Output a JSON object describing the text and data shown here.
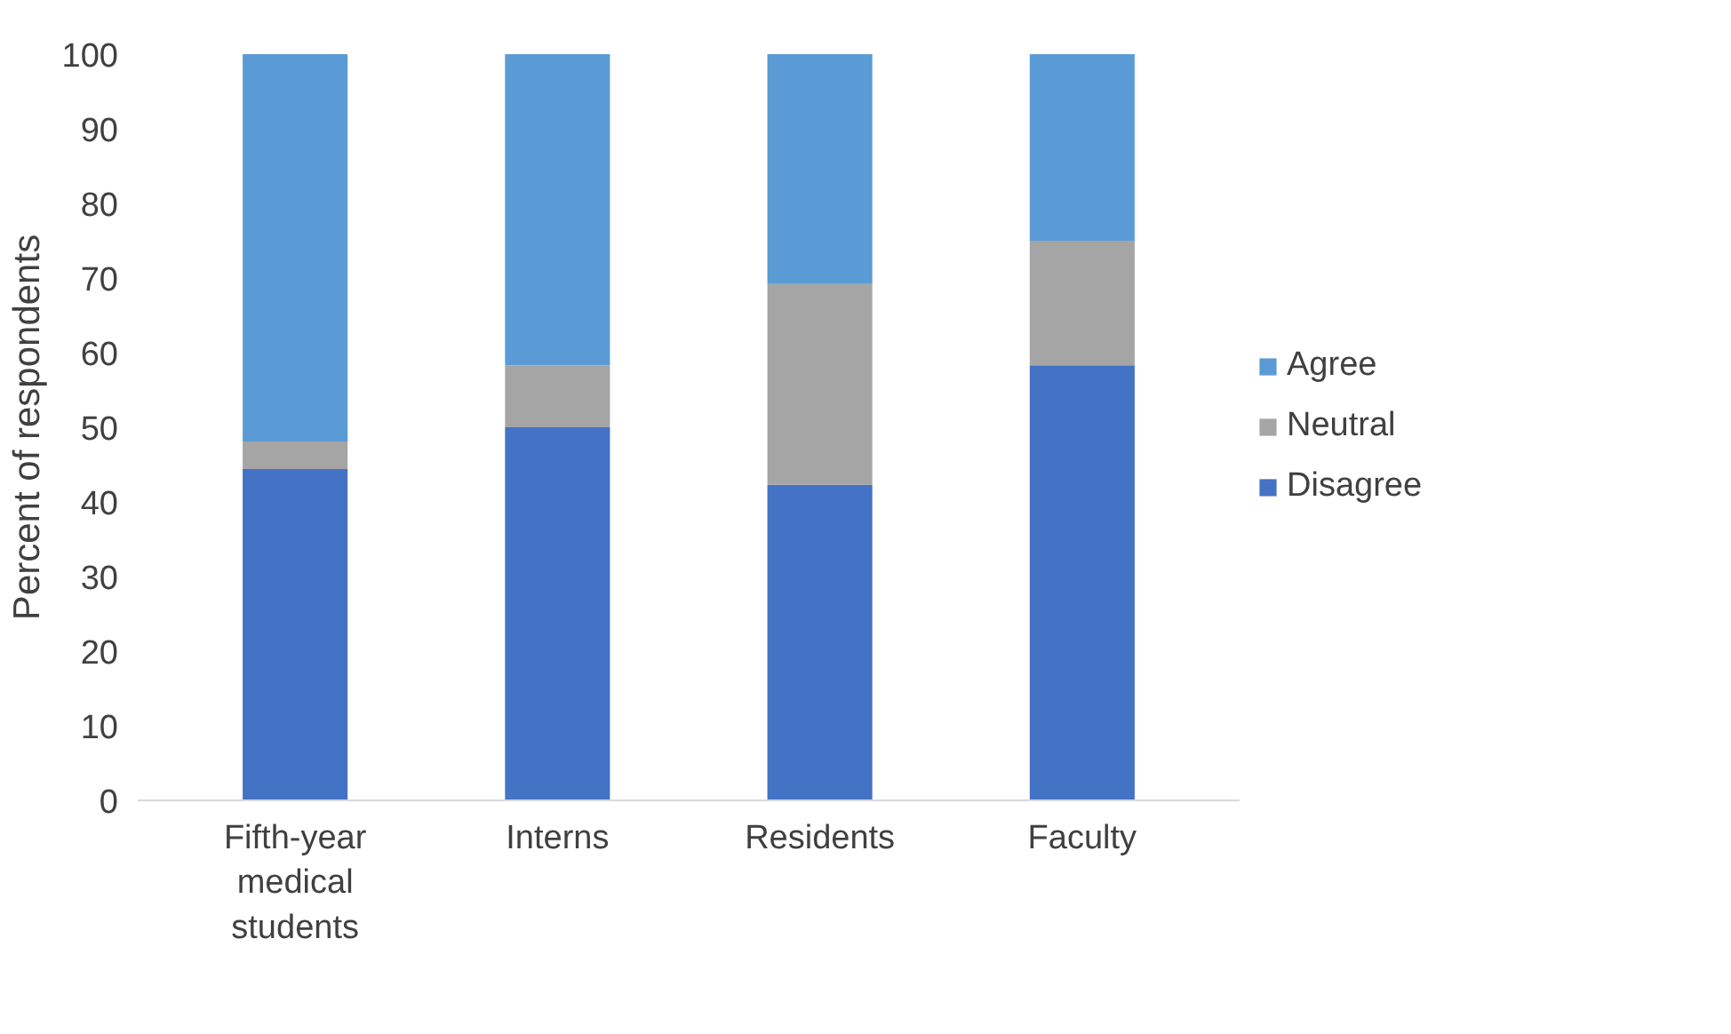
{
  "chart_data": {
    "type": "bar",
    "stacked": true,
    "ylabel": "Percent of respondents",
    "categories": [
      "Fifth-year medical students",
      "Interns",
      "Residents",
      "Faculty"
    ],
    "series": [
      {
        "name": "Disagree",
        "color": "#4472c4",
        "values": [
          44.4,
          50.0,
          42.3,
          58.3
        ]
      },
      {
        "name": "Neutral",
        "color": "#a5a5a5",
        "values": [
          3.7,
          8.3,
          26.9,
          16.7
        ]
      },
      {
        "name": "Agree",
        "color": "#5b9bd5",
        "values": [
          51.9,
          41.7,
          30.8,
          25.0
        ]
      }
    ],
    "ylim": [
      0,
      100
    ],
    "yticks": [
      0,
      10,
      20,
      30,
      40,
      50,
      60,
      70,
      80,
      90,
      100
    ],
    "grid": false,
    "legend": "right"
  }
}
